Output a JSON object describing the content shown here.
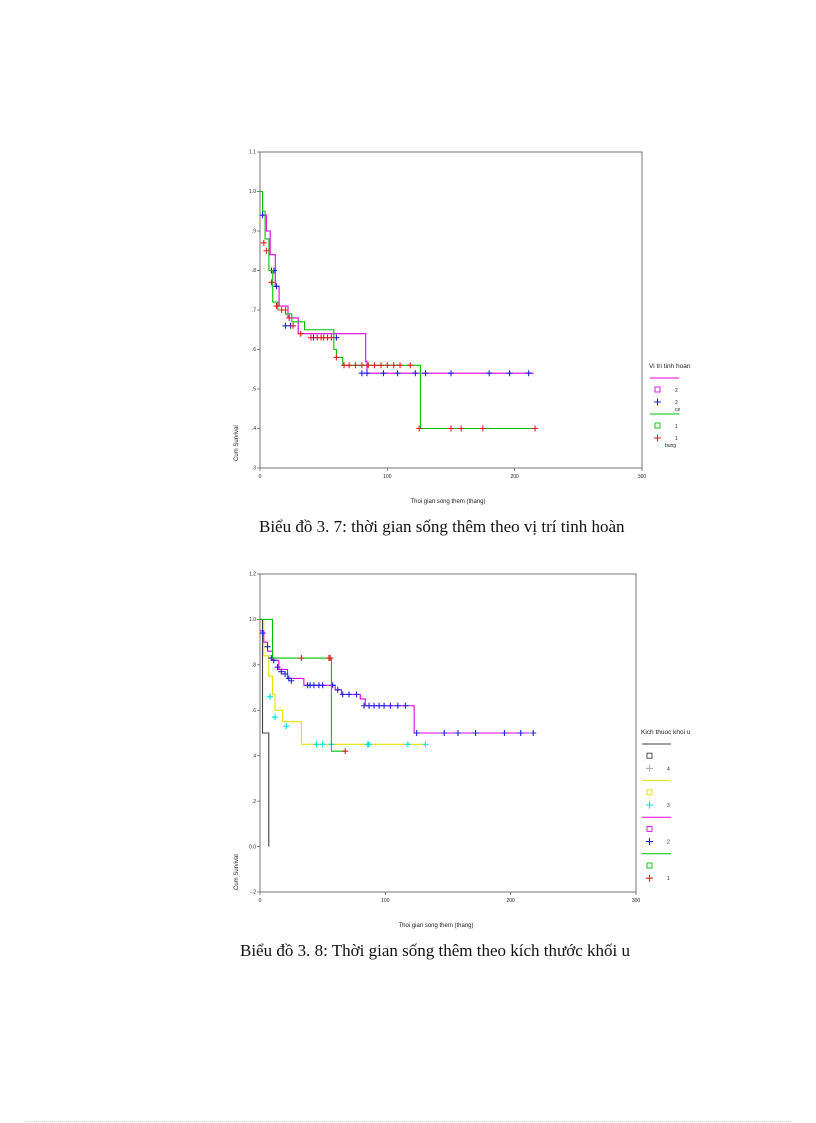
{
  "chart_data": [
    {
      "type": "line",
      "title": "",
      "caption": "Biểu đồ 3. 7: thời gian sống thêm theo vị trí tinh hoàn",
      "xlabel": "Thoi gian song them (thang)",
      "ylabel": "Cum Survival",
      "xlim": [
        0,
        300
      ],
      "ylim": [
        0.3,
        1.1
      ],
      "x_ticks": [
        {
          "v": 0,
          "label": "0"
        },
        {
          "v": 100,
          "label": "100"
        },
        {
          "v": 200,
          "label": "200"
        },
        {
          "v": 300,
          "label": "300"
        }
      ],
      "y_ticks": [
        {
          "v": 1.1,
          "label": "1.1"
        },
        {
          "v": 1.0,
          "label": "1.0"
        },
        {
          "v": 0.9,
          "label": ".9"
        },
        {
          "v": 0.8,
          "label": ".8"
        },
        {
          "v": 0.7,
          "label": ".7"
        },
        {
          "v": 0.6,
          "label": ".6"
        },
        {
          "v": 0.5,
          "label": ".5"
        },
        {
          "v": 0.4,
          "label": ".4"
        },
        {
          "v": 0.3,
          "label": ".3"
        }
      ],
      "legend": {
        "title": "Vi tri tinh hoan",
        "entries": [
          {
            "kind": "line",
            "color": "#e000e0",
            "label": ""
          },
          {
            "kind": "square",
            "color": "#e000e0",
            "label": "2"
          },
          {
            "kind": "plus",
            "color": "#2020e0",
            "label": "2",
            "sub": "ce"
          },
          {
            "kind": "line",
            "color": "#00c000",
            "label": ""
          },
          {
            "kind": "square",
            "color": "#00c000",
            "label": "1"
          },
          {
            "kind": "plus",
            "color": "#e02020",
            "label": "1",
            "sub": "bung"
          }
        ]
      },
      "series": [
        {
          "name": "2",
          "color": "#e000e0",
          "steps": [
            [
              0,
              1.0
            ],
            [
              2,
              0.94
            ],
            [
              5,
              0.9
            ],
            [
              8,
              0.84
            ],
            [
              12,
              0.76
            ],
            [
              15,
              0.71
            ],
            [
              22,
              0.68
            ],
            [
              30,
              0.64
            ],
            [
              83,
              0.57
            ],
            [
              84,
              0.54
            ],
            [
              215,
              0.54
            ]
          ],
          "censor": []
        },
        {
          "name": "2 ce",
          "color": "#2020e0",
          "steps": [],
          "censor": [
            [
              2,
              0.94
            ],
            [
              9,
              0.8
            ],
            [
              11,
              0.8
            ],
            [
              13,
              0.76
            ],
            [
              20,
              0.66
            ],
            [
              24,
              0.66
            ],
            [
              42,
              0.63
            ],
            [
              60,
              0.63
            ],
            [
              80,
              0.54
            ],
            [
              84,
              0.54
            ],
            [
              97,
              0.54
            ],
            [
              108,
              0.54
            ],
            [
              122,
              0.54
            ],
            [
              130,
              0.54
            ],
            [
              150,
              0.54
            ],
            [
              180,
              0.54
            ],
            [
              196,
              0.54
            ],
            [
              211,
              0.54
            ]
          ]
        },
        {
          "name": "1",
          "color": "#00c000",
          "steps": [
            [
              0,
              1.0
            ],
            [
              2,
              0.95
            ],
            [
              4,
              0.88
            ],
            [
              7,
              0.8
            ],
            [
              10,
              0.72
            ],
            [
              14,
              0.7
            ],
            [
              20,
              0.69
            ],
            [
              25,
              0.67
            ],
            [
              35,
              0.65
            ],
            [
              58,
              0.6
            ],
            [
              60,
              0.58
            ],
            [
              65,
              0.56
            ],
            [
              125,
              0.56
            ],
            [
              126,
              0.4
            ],
            [
              218,
              0.4
            ]
          ],
          "censor": []
        },
        {
          "name": "1 bung",
          "color": "#e02020",
          "steps": [],
          "censor": [
            [
              3,
              0.87
            ],
            [
              5,
              0.85
            ],
            [
              9,
              0.77
            ],
            [
              13,
              0.71
            ],
            [
              17,
              0.7
            ],
            [
              20,
              0.7
            ],
            [
              23,
              0.68
            ],
            [
              26,
              0.66
            ],
            [
              32,
              0.64
            ],
            [
              40,
              0.63
            ],
            [
              45,
              0.63
            ],
            [
              48,
              0.63
            ],
            [
              50,
              0.63
            ],
            [
              53,
              0.63
            ],
            [
              56,
              0.63
            ],
            [
              60,
              0.58
            ],
            [
              66,
              0.56
            ],
            [
              70,
              0.56
            ],
            [
              75,
              0.56
            ],
            [
              80,
              0.56
            ],
            [
              85,
              0.56
            ],
            [
              90,
              0.56
            ],
            [
              95,
              0.56
            ],
            [
              100,
              0.56
            ],
            [
              105,
              0.56
            ],
            [
              110,
              0.56
            ],
            [
              118,
              0.56
            ],
            [
              125,
              0.4
            ],
            [
              150,
              0.4
            ],
            [
              158,
              0.4
            ],
            [
              175,
              0.4
            ],
            [
              216,
              0.4
            ]
          ]
        }
      ]
    },
    {
      "type": "line",
      "title": "",
      "caption": "Biểu đồ 3. 8: Thời gian sống thêm theo kích thước khối u",
      "xlabel": "Thoi gian song them (thang)",
      "ylabel": "Cum Survival",
      "xlim": [
        0,
        300
      ],
      "ylim": [
        -0.2,
        1.2
      ],
      "x_ticks": [
        {
          "v": 0,
          "label": "0"
        },
        {
          "v": 100,
          "label": "100"
        },
        {
          "v": 200,
          "label": "200"
        },
        {
          "v": 300,
          "label": "300"
        }
      ],
      "y_ticks": [
        {
          "v": 1.2,
          "label": "1.2"
        },
        {
          "v": 1.0,
          "label": "1.0"
        },
        {
          "v": 0.8,
          "label": ".8"
        },
        {
          "v": 0.6,
          "label": ".6"
        },
        {
          "v": 0.4,
          "label": ".4"
        },
        {
          "v": 0.2,
          "label": ".2"
        },
        {
          "v": 0.0,
          "label": "0.0"
        },
        {
          "v": -0.2,
          "label": "-.2"
        }
      ],
      "legend": {
        "title": "Kich thuoc khoi u",
        "entries": [
          {
            "kind": "line",
            "color": "#404040",
            "label": ""
          },
          {
            "kind": "square",
            "color": "#404040",
            "label": ""
          },
          {
            "kind": "plus",
            "color": "#b0b0b0",
            "label": "4"
          },
          {
            "kind": "line",
            "color": "#e8e000",
            "label": ""
          },
          {
            "kind": "square",
            "color": "#e8e000",
            "label": ""
          },
          {
            "kind": "plus",
            "color": "#00e0e0",
            "label": "3"
          },
          {
            "kind": "line",
            "color": "#e000e0",
            "label": ""
          },
          {
            "kind": "square",
            "color": "#e000e0",
            "label": ""
          },
          {
            "kind": "plus",
            "color": "#2020e0",
            "label": "2"
          },
          {
            "kind": "line",
            "color": "#00c000",
            "label": ""
          },
          {
            "kind": "square",
            "color": "#00c000",
            "label": ""
          },
          {
            "kind": "plus",
            "color": "#e02020",
            "label": "1"
          }
        ]
      },
      "series": [
        {
          "name": "4",
          "color": "#404040",
          "steps": [
            [
              0,
              1.0
            ],
            [
              2,
              0.5
            ],
            [
              7,
              0.5
            ],
            [
              7,
              0.0
            ]
          ],
          "censor": []
        },
        {
          "name": "3",
          "color": "#e8e000",
          "steps": [
            [
              0,
              1.0
            ],
            [
              3,
              0.84
            ],
            [
              7,
              0.75
            ],
            [
              10,
              0.67
            ],
            [
              12,
              0.6
            ],
            [
              18,
              0.55
            ],
            [
              30,
              0.55
            ],
            [
              33,
              0.45
            ],
            [
              130,
              0.45
            ]
          ],
          "censor": []
        },
        {
          "name": "3 cyan",
          "color": "#00e0e0",
          "steps": [],
          "censor": [
            [
              8,
              0.66
            ],
            [
              12,
              0.57
            ],
            [
              21,
              0.53
            ],
            [
              45,
              0.45
            ],
            [
              50,
              0.45
            ],
            [
              57,
              0.45
            ],
            [
              86,
              0.45
            ],
            [
              87,
              0.45
            ],
            [
              118,
              0.45
            ],
            [
              132,
              0.45
            ]
          ]
        },
        {
          "name": "2",
          "color": "#e000e0",
          "steps": [
            [
              0,
              0.95
            ],
            [
              3,
              0.9
            ],
            [
              6,
              0.86
            ],
            [
              10,
              0.82
            ],
            [
              15,
              0.78
            ],
            [
              22,
              0.74
            ],
            [
              35,
              0.71
            ],
            [
              60,
              0.69
            ],
            [
              65,
              0.67
            ],
            [
              80,
              0.65
            ],
            [
              84,
              0.62
            ],
            [
              122,
              0.62
            ],
            [
              123,
              0.5
            ],
            [
              215,
              0.5
            ]
          ],
          "censor": []
        },
        {
          "name": "2 blue",
          "color": "#2020e0",
          "steps": [],
          "censor": [
            [
              2,
              0.94
            ],
            [
              6,
              0.88
            ],
            [
              9,
              0.83
            ],
            [
              11,
              0.82
            ],
            [
              14,
              0.79
            ],
            [
              17,
              0.77
            ],
            [
              20,
              0.76
            ],
            [
              23,
              0.74
            ],
            [
              25,
              0.73
            ],
            [
              38,
              0.71
            ],
            [
              40,
              0.71
            ],
            [
              43,
              0.71
            ],
            [
              47,
              0.71
            ],
            [
              50,
              0.71
            ],
            [
              58,
              0.71
            ],
            [
              62,
              0.69
            ],
            [
              66,
              0.67
            ],
            [
              71,
              0.67
            ],
            [
              77,
              0.67
            ],
            [
              83,
              0.62
            ],
            [
              87,
              0.62
            ],
            [
              91,
              0.62
            ],
            [
              95,
              0.62
            ],
            [
              99,
              0.62
            ],
            [
              104,
              0.62
            ],
            [
              110,
              0.62
            ],
            [
              116,
              0.62
            ],
            [
              125,
              0.5
            ],
            [
              147,
              0.5
            ],
            [
              158,
              0.5
            ],
            [
              172,
              0.5
            ],
            [
              195,
              0.5
            ],
            [
              208,
              0.5
            ],
            [
              218,
              0.5
            ]
          ]
        },
        {
          "name": "1",
          "color": "#00c000",
          "steps": [
            [
              0,
              1.0
            ],
            [
              8,
              1.0
            ],
            [
              10,
              0.83
            ],
            [
              56,
              0.83
            ],
            [
              57,
              0.42
            ],
            [
              68,
              0.42
            ]
          ],
          "censor": []
        },
        {
          "name": "1 red",
          "color": "#e02020",
          "steps": [],
          "censor": [
            [
              33,
              0.83
            ],
            [
              55,
              0.83
            ],
            [
              56,
              0.83
            ],
            [
              68,
              0.42
            ]
          ]
        }
      ]
    }
  ]
}
